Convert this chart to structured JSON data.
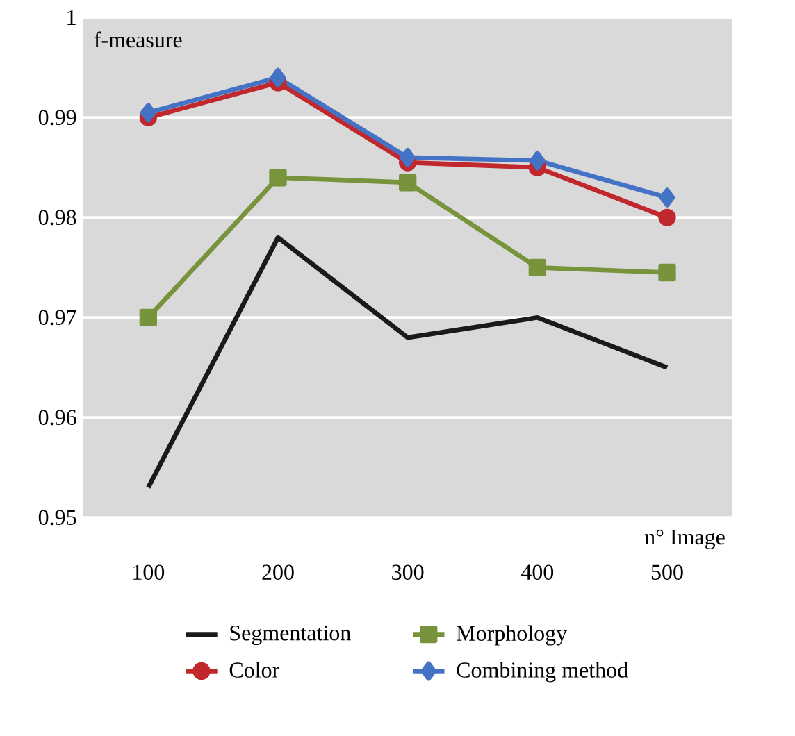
{
  "chart_data": {
    "type": "line",
    "ylabel": "f-measure",
    "xlabel": "n° Image",
    "categories": [
      "100",
      "200",
      "300",
      "400",
      "500"
    ],
    "series": [
      {
        "name": "Segmentation",
        "color": "#1a1a1a",
        "marker": "none",
        "values": [
          0.953,
          0.978,
          0.968,
          0.97,
          0.965
        ]
      },
      {
        "name": "Morphology",
        "color": "#77933c",
        "marker": "square",
        "values": [
          0.97,
          0.984,
          0.9835,
          0.975,
          0.9745
        ]
      },
      {
        "name": "Color",
        "color": "#c0282d",
        "marker": "circle",
        "values": [
          0.99,
          0.9935,
          0.9855,
          0.985,
          0.98
        ]
      },
      {
        "name": "Combining method",
        "color": "#4472c4",
        "marker": "diamond",
        "values": [
          0.9905,
          0.994,
          0.986,
          0.9857,
          0.982
        ]
      }
    ],
    "ylim": [
      0.95,
      1
    ],
    "yticks": [
      0.95,
      0.96,
      0.97,
      0.98,
      0.99,
      1
    ],
    "grid": "y",
    "legend": "bottom"
  }
}
